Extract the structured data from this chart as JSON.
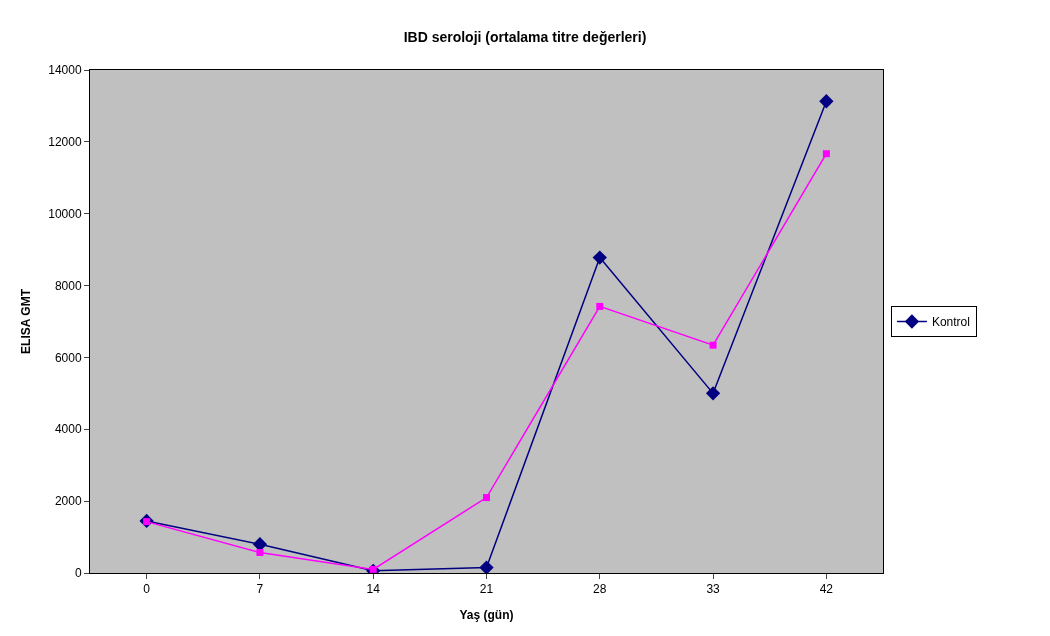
{
  "chart_data": {
    "type": "line",
    "title": "IBD seroloji (ortalama titre değerleri)",
    "xlabel": "Yaş (gün)",
    "ylabel": "ELISA GMT",
    "categories": [
      "0",
      "7",
      "14",
      "21",
      "28",
      "33",
      "42"
    ],
    "series": [
      {
        "name": "Kontrol",
        "color": "#000080",
        "marker": "diamond",
        "values": [
          1450,
          800,
          60,
          150,
          8780,
          5000,
          13130
        ]
      },
      {
        "color": "#ff00ff",
        "marker": "square",
        "values": [
          1430,
          570,
          100,
          2100,
          7420,
          6340,
          11670
        ]
      }
    ],
    "ylim": [
      0,
      14000
    ],
    "yticks": [
      0,
      2000,
      4000,
      6000,
      8000,
      10000,
      12000,
      14000
    ],
    "grid": false,
    "legend": "right"
  }
}
